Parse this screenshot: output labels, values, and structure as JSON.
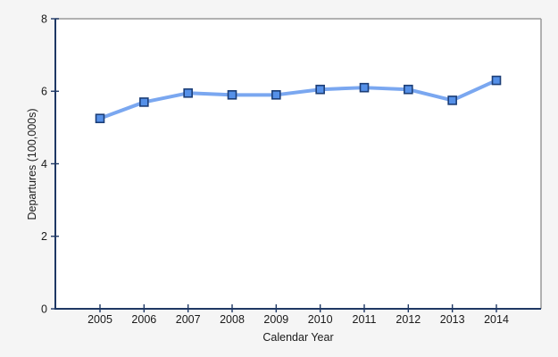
{
  "window": {
    "background": "#f5f5f5",
    "plot_background": "#ffffff"
  },
  "chart_data": {
    "type": "line",
    "title": "",
    "xlabel": "Calendar Year",
    "ylabel": "Departures (100,000s)",
    "categories": [
      "2005",
      "2006",
      "2007",
      "2008",
      "2009",
      "2010",
      "2011",
      "2012",
      "2013",
      "2014"
    ],
    "series": [
      {
        "name": "Departures",
        "values": [
          5.25,
          5.7,
          5.95,
          5.9,
          5.9,
          6.05,
          6.1,
          6.05,
          5.75,
          6.3
        ]
      }
    ],
    "ylim": [
      0,
      8
    ],
    "y_ticks": [
      0,
      2,
      4,
      6,
      8
    ],
    "grid": "off",
    "legend": "none",
    "line_color": "#7AA7F0",
    "marker": {
      "shape": "square",
      "fill": "#5590E8",
      "stroke": "#1C3E77"
    },
    "axis_color": "#1F3864",
    "frame_color": "#999999"
  }
}
